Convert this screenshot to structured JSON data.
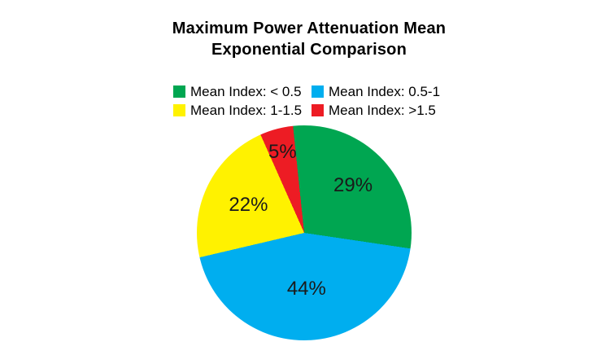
{
  "background": "#ffffff",
  "title": {
    "lines": [
      "Maximum Power Attenuation Mean",
      "Exponential Comparison"
    ]
  },
  "legend": {
    "items": [
      {
        "label": "Mean Index: < 0.5",
        "color": "#00A651"
      },
      {
        "label": "Mean Index: 0.5-1",
        "color": "#00AEEF"
      },
      {
        "label": "Mean Index: 1-1.5",
        "color": "#FFF200"
      },
      {
        "label": "Mean Index: >1.5",
        "color": "#ED1C24"
      }
    ]
  },
  "chart_data": {
    "type": "pie",
    "title": "Maximum Power Attenuation Mean Exponential Comparison",
    "slices": [
      {
        "label": "Mean Index: < 0.5",
        "value": 29,
        "display": "29%",
        "color": "#00A651"
      },
      {
        "label": "Mean Index: 0.5-1",
        "value": 44,
        "display": "44%",
        "color": "#00AEEF"
      },
      {
        "label": "Mean Index: 1-1.5",
        "value": 22,
        "display": "22%",
        "color": "#FFF200"
      },
      {
        "label": "Mean Index: >1.5",
        "value": 5,
        "display": "5%",
        "color": "#ED1C24"
      }
    ],
    "start_angle_deg": -6,
    "direction": "clockwise",
    "legend_position": "top",
    "labels": "percent-inside",
    "colors": [
      "#00A651",
      "#00AEEF",
      "#FFF200",
      "#ED1C24"
    ]
  }
}
